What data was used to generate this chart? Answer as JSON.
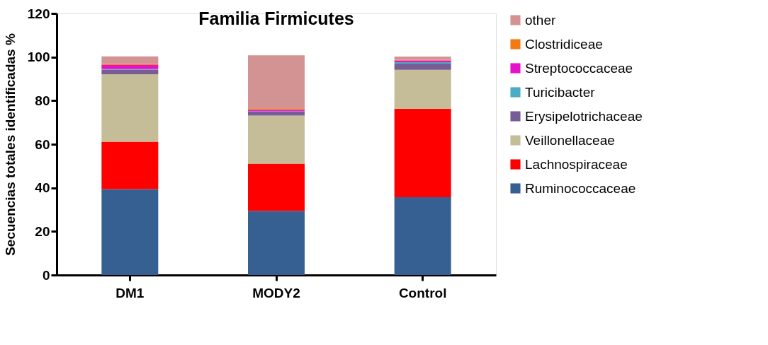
{
  "chart_data": {
    "type": "bar",
    "title": "Familia Firmicutes",
    "ylabel": "Secuencias totales identificadas %",
    "categories": [
      "DM1",
      "MODY2",
      "Control"
    ],
    "stacked": true,
    "ylim": [
      0,
      120
    ],
    "yticks": [
      0,
      20,
      40,
      60,
      80,
      100,
      120
    ],
    "grid": false,
    "legend": "right",
    "series": [
      {
        "name": "Ruminococcaceae",
        "color": "#366092",
        "values": [
          39.4,
          29.4,
          35.7
        ]
      },
      {
        "name": "Lachnospiraceae",
        "color": "#ff0000",
        "values": [
          21.7,
          21.7,
          40.6
        ]
      },
      {
        "name": "Veillonellaceae",
        "color": "#c4bd97",
        "values": [
          31,
          22,
          17.8
        ]
      },
      {
        "name": "Erysipelotrichaceae",
        "color": "#765d96",
        "values": [
          2.1,
          1.8,
          2.9
        ]
      },
      {
        "name": "Turicibacter",
        "color": "#4bacc6",
        "values": [
          0.3,
          0.2,
          0.6
        ]
      },
      {
        "name": "Streptococcaceae",
        "color": "#e512c8",
        "values": [
          1.8,
          0.6,
          0.8
        ]
      },
      {
        "name": "Clostridiceae",
        "color": "#f27a10",
        "values": [
          0.5,
          0.5,
          0.3
        ]
      },
      {
        "name": "other",
        "color": "#d39393",
        "values": [
          3.5,
          24.6,
          1.5
        ]
      }
    ]
  }
}
